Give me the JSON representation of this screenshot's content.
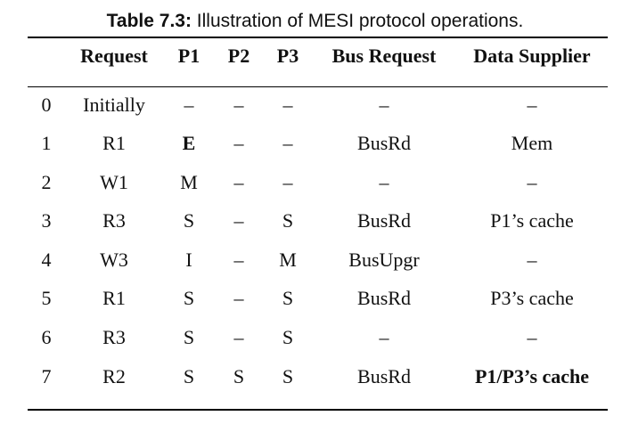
{
  "caption": {
    "label": "Table 7.3:",
    "text": " Illustration of MESI protocol operations."
  },
  "table": {
    "headers": [
      "",
      "Request",
      "P1",
      "P2",
      "P3",
      "Bus Request",
      "Data Supplier"
    ],
    "rows": [
      [
        "0",
        "Initially",
        "–",
        "–",
        "–",
        "–",
        "–"
      ],
      [
        "1",
        "R1",
        "E",
        "–",
        "–",
        "BusRd",
        "Mem"
      ],
      [
        "2",
        "W1",
        "M",
        "–",
        "–",
        "–",
        "–"
      ],
      [
        "3",
        "R3",
        "S",
        "–",
        "S",
        "BusRd",
        "P1’s cache"
      ],
      [
        "4",
        "W3",
        "I",
        "–",
        "M",
        "BusUpgr",
        "–"
      ],
      [
        "5",
        "R1",
        "S",
        "–",
        "S",
        "BusRd",
        "P3’s cache"
      ],
      [
        "6",
        "R3",
        "S",
        "–",
        "S",
        "–",
        "–"
      ],
      [
        "7",
        "R2",
        "S",
        "S",
        "S",
        "BusRd",
        "P1/P3’s cache"
      ]
    ],
    "bold_cells": [
      [
        1,
        2
      ],
      [
        7,
        6
      ]
    ]
  }
}
